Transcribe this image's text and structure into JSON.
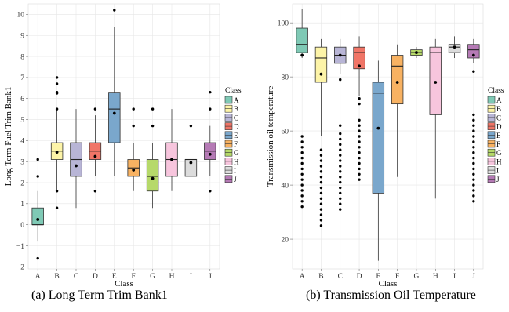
{
  "captions": {
    "a": "(a) Long Term Trim Bank1",
    "b": "(b) Transmission Oil Temperature"
  },
  "colors": {
    "A": "#7fc9b5",
    "B": "#fdf4a8",
    "C": "#b8b5d6",
    "D": "#f07567",
    "E": "#7aa7cc",
    "F": "#f8b262",
    "G": "#b6d96a",
    "H": "#f7c5dd",
    "I": "#dcdcdc",
    "J": "#b57ab5"
  },
  "chart_data": [
    {
      "type": "box",
      "xlabel": "Class",
      "ylabel": "Long Term Fuel Trim Bank1",
      "ylim": [
        -2.1,
        10.5
      ],
      "yticks": [
        -2,
        -1,
        0,
        1,
        2,
        3,
        4,
        5,
        6,
        7,
        8,
        9,
        10
      ],
      "grid": true,
      "legend": {
        "title": "Class",
        "placement": "right"
      },
      "categories": [
        "A",
        "B",
        "C",
        "D",
        "E",
        "F",
        "G",
        "H",
        "I",
        "J"
      ],
      "boxes": [
        {
          "label": "A",
          "whislo": -0.8,
          "q1": 0.0,
          "med": 0.0,
          "q3": 0.8,
          "whishi": 1.6,
          "mean": 0.25,
          "outliers": [
            -1.6,
            2.3,
            3.1
          ]
        },
        {
          "label": "B",
          "whislo": 1.6,
          "q1": 3.1,
          "med": 3.5,
          "q3": 3.9,
          "whishi": 5.5,
          "mean": 3.45,
          "outliers": [
            0.8,
            1.6,
            5.5,
            6.25,
            6.3,
            6.7,
            7.0
          ]
        },
        {
          "label": "C",
          "whislo": 0.8,
          "q1": 2.3,
          "med": 3.1,
          "q3": 3.9,
          "whishi": 5.5,
          "mean": 2.8,
          "outliers": []
        },
        {
          "label": "D",
          "whislo": 2.3,
          "q1": 3.1,
          "med": 3.5,
          "q3": 3.9,
          "whishi": 5.2,
          "mean": 3.25,
          "outliers": [
            1.6,
            5.5
          ]
        },
        {
          "label": "E",
          "whislo": 2.3,
          "q1": 3.9,
          "med": 5.5,
          "q3": 6.3,
          "whishi": 9.4,
          "mean": 5.3,
          "outliers": [
            10.2
          ]
        },
        {
          "label": "F",
          "whislo": 1.6,
          "q1": 2.3,
          "med": 2.7,
          "q3": 3.1,
          "whishi": 3.9,
          "mean": 2.6,
          "outliers": [
            4.7,
            5.5
          ]
        },
        {
          "label": "G",
          "whislo": 0.8,
          "q1": 1.6,
          "med": 2.3,
          "q3": 3.1,
          "whishi": 3.9,
          "mean": 2.2,
          "outliers": [
            4.7,
            5.5
          ]
        },
        {
          "label": "H",
          "whislo": 1.6,
          "q1": 2.3,
          "med": 3.1,
          "q3": 3.9,
          "whishi": 5.5,
          "mean": 3.1,
          "outliers": []
        },
        {
          "label": "I",
          "whislo": 1.6,
          "q1": 2.3,
          "med": 3.1,
          "q3": 3.1,
          "whishi": 3.1,
          "mean": 2.95,
          "outliers": [
            4.7
          ]
        },
        {
          "label": "J",
          "whislo": 2.3,
          "q1": 3.1,
          "med": 3.5,
          "q3": 3.9,
          "whishi": 4.7,
          "mean": 3.35,
          "outliers": [
            1.6,
            5.5,
            6.3
          ]
        }
      ]
    },
    {
      "type": "box",
      "xlabel": "Class",
      "ylabel": "Transmission oil temperature",
      "ylim": [
        9,
        107
      ],
      "yticks": [
        20,
        40,
        60,
        80,
        100
      ],
      "grid": true,
      "legend": {
        "title": "Class",
        "placement": "right"
      },
      "categories": [
        "A",
        "B",
        "C",
        "D",
        "E",
        "F",
        "G",
        "H",
        "I",
        "J"
      ],
      "boxes": [
        {
          "label": "A",
          "whislo": 87,
          "q1": 89,
          "med": 92,
          "q3": 98,
          "whishi": 105,
          "mean": 88,
          "outliers": [
            32,
            34,
            36,
            38,
            40,
            42,
            44,
            46,
            48,
            50,
            52,
            54,
            56,
            58
          ]
        },
        {
          "label": "B",
          "whislo": 58,
          "q1": 78,
          "med": 87,
          "q3": 91,
          "whishi": 94,
          "mean": 81,
          "outliers": [
            25,
            27,
            29,
            31,
            33,
            35,
            37,
            39,
            41,
            43,
            45,
            47,
            49,
            51,
            53
          ]
        },
        {
          "label": "C",
          "whislo": 81,
          "q1": 85,
          "med": 88,
          "q3": 91,
          "whishi": 94,
          "mean": 88,
          "outliers": [
            31,
            33,
            35,
            37,
            39,
            41,
            43,
            45,
            47,
            49,
            51,
            53,
            55,
            57,
            59,
            62,
            79
          ]
        },
        {
          "label": "D",
          "whislo": 73,
          "q1": 83,
          "med": 89,
          "q3": 91,
          "whishi": 95,
          "mean": 84,
          "outliers": [
            42,
            44,
            46,
            48,
            50,
            52,
            54,
            56,
            58,
            60,
            62,
            64,
            70,
            72
          ]
        },
        {
          "label": "E",
          "whislo": 12,
          "q1": 37,
          "med": 74,
          "q3": 78,
          "whishi": 86,
          "mean": 61,
          "outliers": []
        },
        {
          "label": "F",
          "whislo": 43,
          "q1": 70,
          "med": 84,
          "q3": 88,
          "whishi": 92,
          "mean": 78,
          "outliers": []
        },
        {
          "label": "G",
          "whislo": 87,
          "q1": 88,
          "med": 89,
          "q3": 90,
          "whishi": 91,
          "mean": 89,
          "outliers": []
        },
        {
          "label": "H",
          "whislo": 35,
          "q1": 66,
          "med": 89,
          "q3": 91,
          "whishi": 94,
          "mean": 78,
          "outliers": []
        },
        {
          "label": "I",
          "whislo": 87,
          "q1": 89,
          "med": 91,
          "q3": 92,
          "whishi": 95,
          "mean": 91,
          "outliers": []
        },
        {
          "label": "J",
          "whislo": 85,
          "q1": 87,
          "med": 90,
          "q3": 92,
          "whishi": 94,
          "mean": 88,
          "outliers": [
            34,
            36,
            38,
            40,
            42,
            44,
            46,
            48,
            50,
            52,
            54,
            56,
            58,
            60,
            62,
            64,
            66,
            82
          ]
        }
      ]
    }
  ]
}
